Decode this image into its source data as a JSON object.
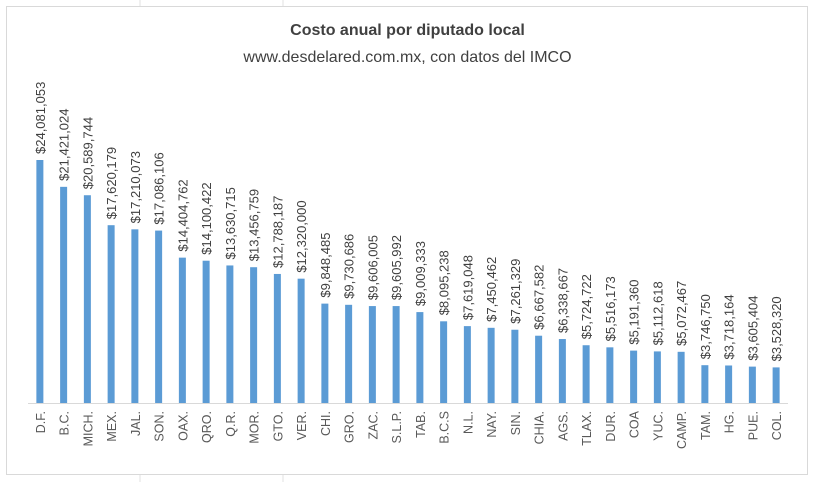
{
  "chart_data": {
    "type": "bar",
    "title": "Costo anual por diputado local",
    "subtitle": "www.desdelared.com.mx, con datos del IMCO",
    "bar_color": "#5b9bd5",
    "categories": [
      "D.F.",
      "B.C.",
      "MICH.",
      "MEX.",
      "JAL.",
      "SON.",
      "OAX.",
      "QRO.",
      "Q.R.",
      "MOR.",
      "GTO.",
      "VER.",
      "CHI.",
      "GRO.",
      "ZAC.",
      "S.L.P.",
      "TAB.",
      "B.C.S",
      "N.L.",
      "NAY.",
      "SIN.",
      "CHIA.",
      "AGS.",
      "TLAX.",
      "DUR.",
      "COA",
      "YUC.",
      "CAMP.",
      "TAM.",
      "HG.",
      "PUE.",
      "COL."
    ],
    "values": [
      24081053,
      21421024,
      20589744,
      17620179,
      17210073,
      17086106,
      14404762,
      14100422,
      13630715,
      13456759,
      12788187,
      12320000,
      9848485,
      9730686,
      9606005,
      9605992,
      9009333,
      8095238,
      7619048,
      7450462,
      7261329,
      6667582,
      6338667,
      5724722,
      5516173,
      5191360,
      5112618,
      5072467,
      3746750,
      3718164,
      3605404,
      3528320
    ],
    "labels": [
      "$24,081,053",
      "$21,421,024",
      "$20,589,744",
      "$17,620,179",
      "$17,210,073",
      "$17,086,106",
      "$14,404,762",
      "$14,100,422",
      "$13,630,715",
      "$13,456,759",
      "$12,788,187",
      "$12,320,000",
      "$9,848,485",
      "$9,730,686",
      "$9,606,005",
      "$9,605,992",
      "$9,009,333",
      "$8,095,238",
      "$7,619,048",
      "$7,450,462",
      "$7,261,329",
      "$6,667,582",
      "$6,338,667",
      "$5,724,722",
      "$5,516,173",
      "$5,191,360",
      "$5,112,618",
      "$5,072,467",
      "$3,746,750",
      "$3,718,164",
      "$3,605,404",
      "$3,528,320"
    ],
    "xlabel": "",
    "ylabel": "",
    "ylim": [
      0,
      24081053
    ],
    "grid": false,
    "legend": "none"
  }
}
